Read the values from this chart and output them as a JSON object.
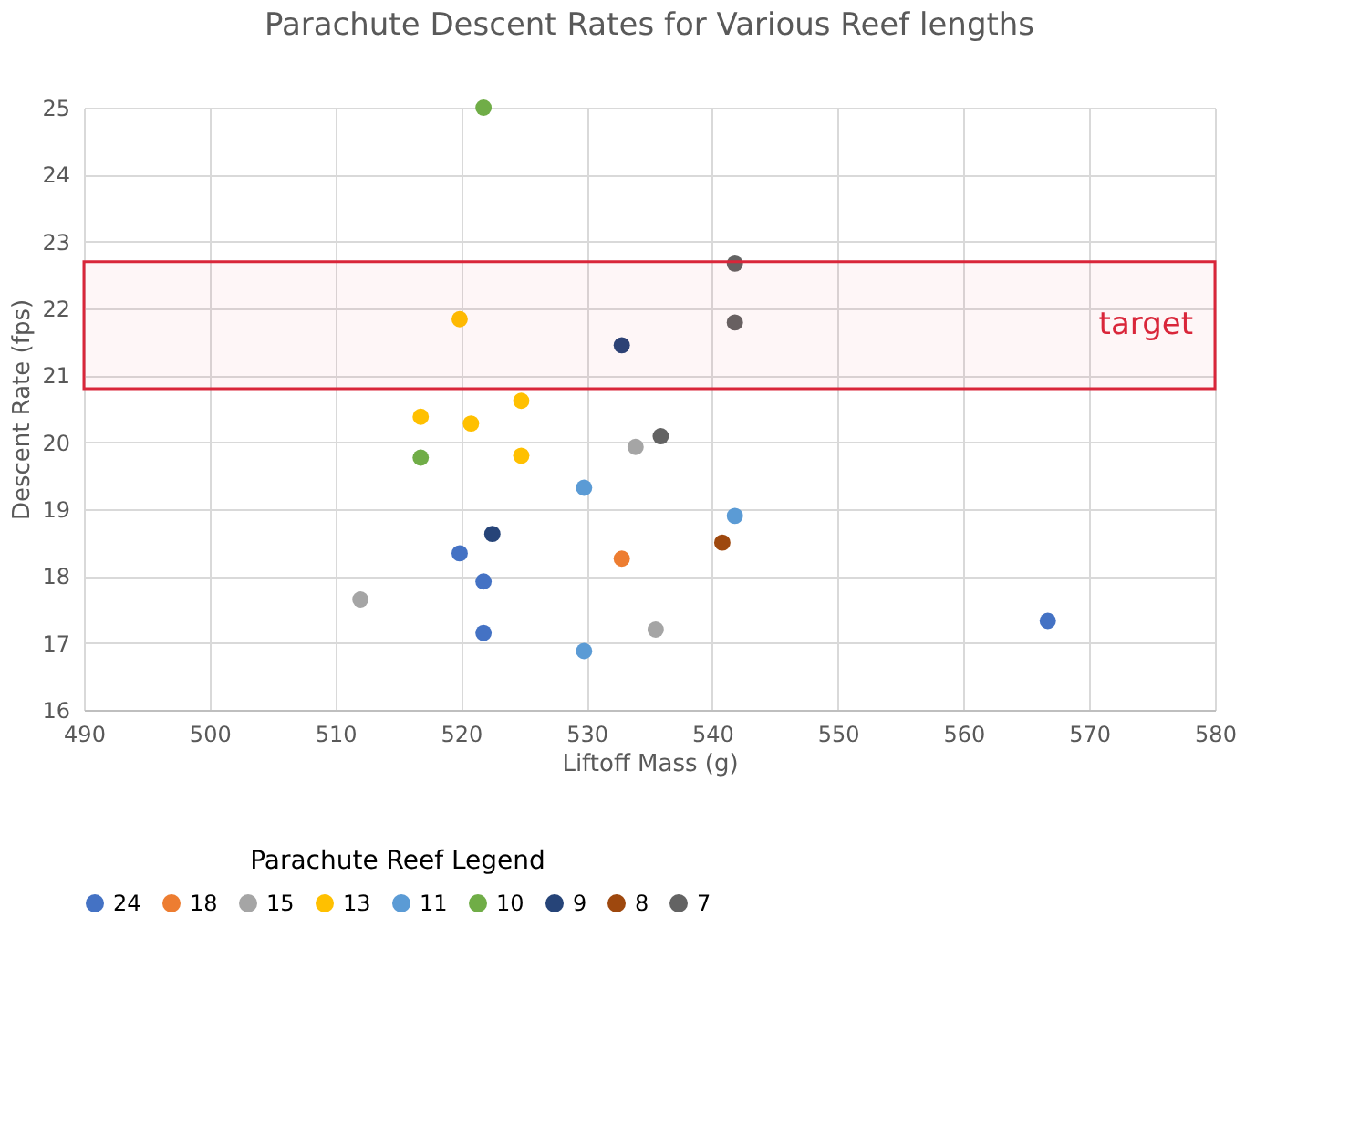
{
  "chart_data": {
    "type": "scatter",
    "title": "Parachute Descent Rates for Various Reef lengths",
    "xlabel": "Liftoff Mass (g)",
    "ylabel": "Descent Rate (fps)",
    "legend_title": "Parachute Reef Legend",
    "legend": "bottom",
    "grid": true,
    "marker": "circle",
    "xlim": [
      490,
      580
    ],
    "xticks": [
      490,
      500,
      510,
      520,
      530,
      540,
      550,
      560,
      570,
      580
    ],
    "ylim": [
      16,
      25
    ],
    "yticks": [
      16,
      17,
      18,
      19,
      20,
      21,
      22,
      23,
      24,
      25
    ],
    "bands": [
      {
        "axis": "y",
        "from": 20.8,
        "to": 22.7,
        "label": "target",
        "color": "#d9263a"
      }
    ],
    "series": [
      {
        "name": "24",
        "color": "#4472c4",
        "x": [
          519.9,
          521.8,
          521.8,
          566.7
        ],
        "values": [
          18.34,
          17.92,
          17.15,
          17.33
        ]
      },
      {
        "name": "18",
        "color": "#ed7d31",
        "x": [
          532.8
        ],
        "values": [
          18.26
        ]
      },
      {
        "name": "15",
        "color": "#a5a5a5",
        "x": [
          512,
          533.9,
          535.5
        ],
        "values": [
          17.65,
          19.93,
          17.2
        ]
      },
      {
        "name": "13",
        "color": "#ffc000",
        "x": [
          519.9,
          516.8,
          520.8,
          524.8,
          524.8
        ],
        "values": [
          21.84,
          20.38,
          20.28,
          20.62,
          19.8
        ]
      },
      {
        "name": "11",
        "color": "#5b9bd5",
        "x": [
          529.8,
          529.8,
          541.8
        ],
        "values": [
          19.32,
          16.88,
          18.9
        ]
      },
      {
        "name": "10",
        "color": "#70ad47",
        "x": [
          521.8,
          516.8
        ],
        "values": [
          25,
          19.77
        ]
      },
      {
        "name": "9",
        "color": "#264478",
        "x": [
          532.8,
          522.5
        ],
        "values": [
          21.45,
          18.63
        ]
      },
      {
        "name": "8",
        "color": "#9e480e",
        "x": [
          540.8
        ],
        "values": [
          18.5
        ]
      },
      {
        "name": "7",
        "color": "#636363",
        "x": [
          541.8,
          541.8,
          535.9
        ],
        "values": [
          22.67,
          21.79,
          20.09
        ]
      }
    ]
  }
}
